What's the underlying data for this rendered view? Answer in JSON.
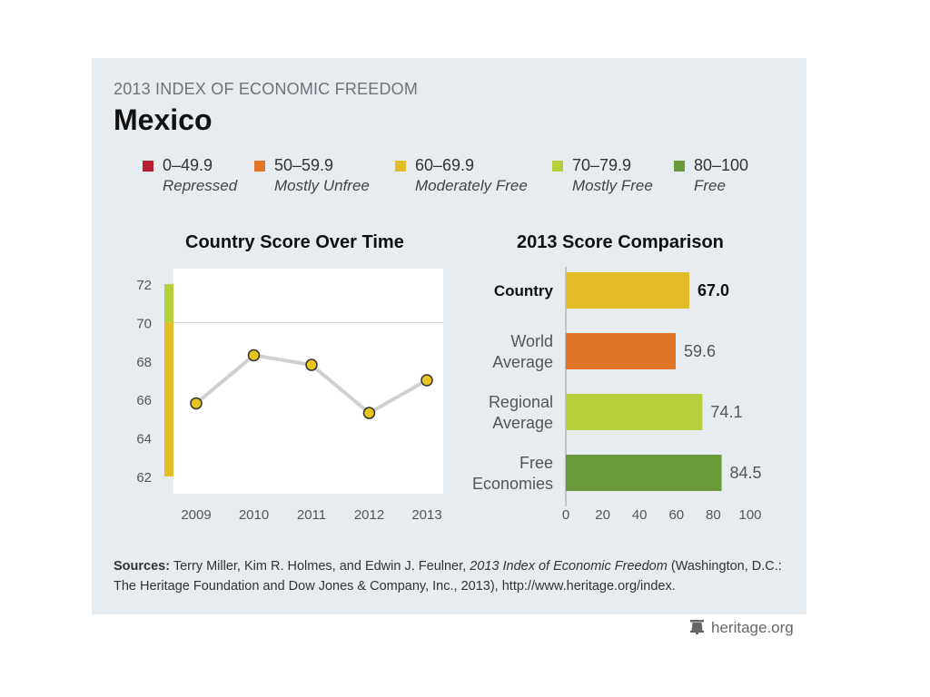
{
  "header": {
    "overline": "2013 INDEX OF ECONOMIC FREEDOM",
    "country": "Mexico"
  },
  "legend": [
    {
      "range": "0–49.9",
      "label": "Repressed",
      "color": "#b5202e"
    },
    {
      "range": "50–59.9",
      "label": "Mostly Unfree",
      "color": "#e07527"
    },
    {
      "range": "60–69.9",
      "label": "Moderately Free",
      "color": "#e3bd27"
    },
    {
      "range": "70–79.9",
      "label": "Mostly Free",
      "color": "#b7cf3a"
    },
    {
      "range": "80–100",
      "label": "Free",
      "color": "#6b9a3a"
    }
  ],
  "chart_data": [
    {
      "type": "line",
      "title": "Country Score Over Time",
      "x": [
        "2009",
        "2010",
        "2011",
        "2012",
        "2013"
      ],
      "values": [
        65.8,
        68.3,
        67.8,
        65.3,
        67.0
      ],
      "ylim": [
        62,
        72
      ],
      "yticks": [
        "62",
        "64",
        "66",
        "68",
        "70",
        "72"
      ],
      "reference_line": 70,
      "line_color": "#d0d0d0",
      "marker_color": "#e8c41e",
      "scale_bar": [
        {
          "from": 62,
          "to": 70,
          "color": "#e3bd27"
        },
        {
          "from": 70,
          "to": 72,
          "color": "#b7cf3a"
        }
      ]
    },
    {
      "type": "bar",
      "orientation": "horizontal",
      "title": "2013 Score Comparison",
      "categories": [
        "Country",
        "World Average",
        "Regional Average",
        "Free Economies"
      ],
      "category_lines": [
        [
          "Country"
        ],
        [
          "World",
          "Average"
        ],
        [
          "Regional",
          "Average"
        ],
        [
          "Free",
          "Economies"
        ]
      ],
      "values": [
        67.0,
        59.6,
        74.1,
        84.5
      ],
      "value_labels": [
        "67.0",
        "59.6",
        "74.1",
        "84.5"
      ],
      "colors": [
        "#e3bd27",
        "#e07527",
        "#b7cf3a",
        "#6b9a3a"
      ],
      "xlim": [
        0,
        100
      ],
      "xticks": [
        "0",
        "20",
        "40",
        "60",
        "80",
        "100"
      ]
    }
  ],
  "sources": {
    "label": "Sources:",
    "authors": "Terry Miller, Kim R. Holmes, and Edwin J. Feulner,",
    "title": "2013 Index of Economic Freedom",
    "rest": "(Washington, D.C.: The Heritage Foundation and Dow Jones & Company, Inc., 2013), http://www.heritage.org/index."
  },
  "brand": {
    "text": "heritage.org",
    "icon": "bell-icon"
  }
}
